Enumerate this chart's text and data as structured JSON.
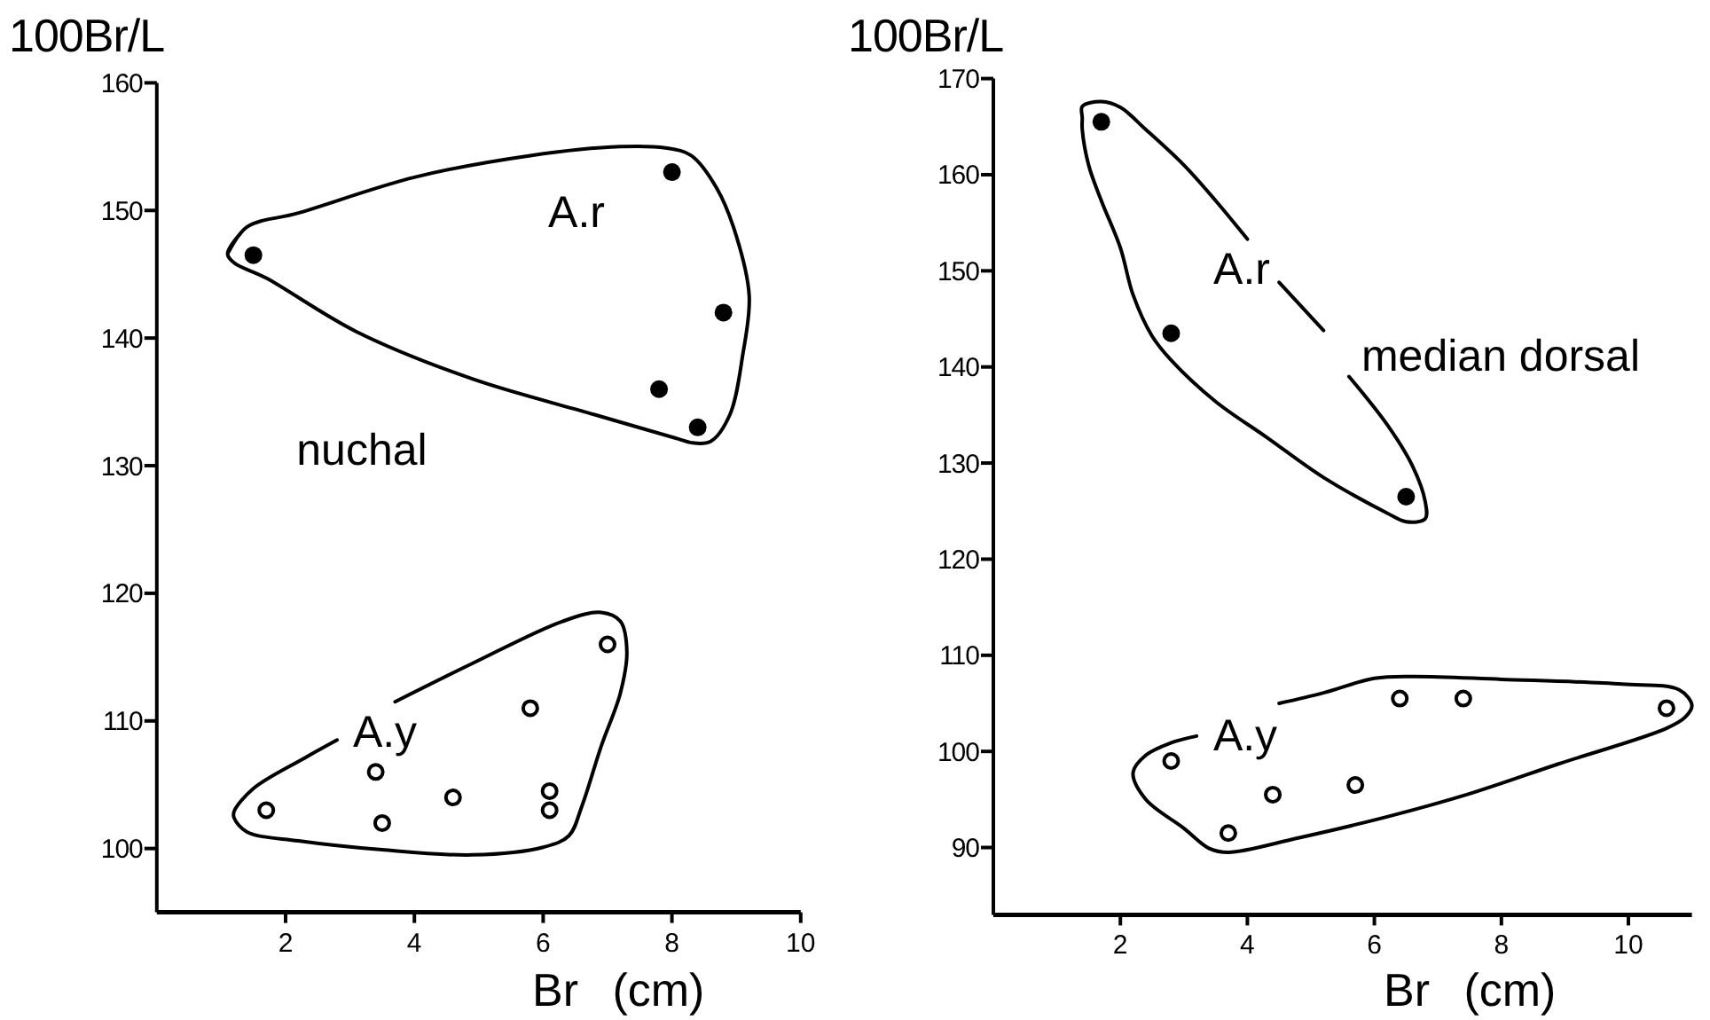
{
  "chart_data": [
    {
      "type": "scatter",
      "title": "nuchal",
      "xlabel": "Br (cm)",
      "ylabel": "100Br/L",
      "xlim": [
        0,
        10
      ],
      "ylim": [
        95,
        160
      ],
      "xticks": [
        2,
        4,
        6,
        8,
        10
      ],
      "yticks": [
        100,
        110,
        120,
        130,
        140,
        150,
        160
      ],
      "series": [
        {
          "name": "A.r",
          "color": "#000000",
          "marker": "circle",
          "x": [
            1.5,
            8.0,
            8.8,
            7.8,
            8.4
          ],
          "values": [
            146.5,
            153,
            142,
            136,
            133
          ]
        },
        {
          "name": "A.y",
          "color": "#000000",
          "marker": "circle",
          "x": [
            1.7,
            3.4,
            3.5,
            4.6,
            5.8,
            6.1,
            6.1,
            7.0
          ],
          "values": [
            103,
            106,
            102,
            104,
            111,
            104.5,
            103,
            116
          ]
        },
        {
          "type": "line",
          "color": "#000000",
          "marker": "none",
          "x": [
            1.1,
            1.4,
            2.2,
            4.0,
            5.8,
            7.2,
            7.9,
            8.3,
            8.7,
            9.0,
            9.2,
            9.1,
            8.9,
            8.6,
            8.3,
            8.1,
            6.8,
            4.9,
            3.1,
            1.7,
            1.2,
            1.1,
            1.3
          ],
          "values": [
            146.6,
            148.7,
            149.8,
            152.6,
            154.3,
            155.0,
            154.9,
            154.3,
            151.7,
            148.0,
            143.3,
            138.7,
            134.0,
            131.9,
            131.8,
            132.1,
            134.0,
            136.8,
            140.5,
            144.7,
            145.9,
            146.6,
            148.2
          ]
        },
        {
          "type": "line",
          "color": "#000000",
          "marker": "none",
          "x": [
            3.7,
            4.9,
            6.3,
            6.9,
            7.2,
            7.3,
            7.2,
            6.9,
            6.6,
            6.4,
            6.0,
            4.9,
            3.5,
            2.2,
            1.4,
            1.2,
            1.2,
            1.5,
            2.3,
            2.8
          ],
          "values": [
            111.5,
            114.5,
            117.8,
            118.5,
            117.8,
            115.4,
            112.2,
            108.0,
            103.3,
            101.0,
            100.1,
            99.5,
            99.9,
            100.6,
            101.3,
            102.4,
            102.9,
            104.7,
            107.1,
            108.5
          ]
        }
      ]
    },
    {
      "type": "scatter",
      "title": "median dorsal",
      "xlabel": "Br (cm)",
      "ylabel": "100Br/L",
      "xlim": [
        0,
        11
      ],
      "ylim": [
        83,
        170
      ],
      "xticks": [
        2,
        4,
        6,
        8,
        10
      ],
      "yticks": [
        90,
        100,
        110,
        120,
        130,
        140,
        150,
        160,
        170
      ],
      "series": [
        {
          "name": "A.r",
          "color": "#000000",
          "marker": "circle",
          "x": [
            1.7,
            2.8,
            6.5
          ],
          "values": [
            165.5,
            143.5,
            126.5
          ]
        },
        {
          "name": "A.y",
          "color": "#000000",
          "marker": "circle",
          "x": [
            2.8,
            3.7,
            4.4,
            5.7,
            6.4,
            7.4,
            10.6
          ],
          "values": [
            99,
            91.5,
            95.5,
            96.5,
            105.5,
            105.5,
            104.5
          ]
        },
        {
          "type": "line",
          "color": "#000000",
          "marker": "none",
          "x": [
            4.5,
            5.2,
            5.4,
            5.6,
            6.2,
            6.6,
            6.8,
            6.8,
            6.5,
            6.2,
            5.2,
            4.3,
            3.5,
            2.8,
            2.5,
            2.2,
            2.0,
            1.7,
            1.5,
            1.4,
            1.4,
            1.4,
            1.7,
            2.0,
            2.4,
            3.0,
            3.5,
            4.0
          ],
          "values": [
            148.8,
            143.8,
            null,
            139.0,
            134.0,
            129.7,
            126.0,
            124.2,
            123.9,
            124.8,
            128.5,
            132.7,
            136.4,
            140.7,
            143.2,
            147.5,
            152.4,
            157.3,
            161.0,
            164.7,
            165.9,
            167.1,
            167.6,
            167.0,
            164.7,
            161.0,
            157.3,
            153.3
          ]
        },
        {
          "type": "line",
          "color": "#000000",
          "marker": "none",
          "x": [
            4.5,
            5.2,
            6.0,
            6.6,
            8.0,
            9.9,
            10.8,
            11.0,
            10.9,
            10.6,
            8.9,
            7.5,
            6.2,
            4.8,
            3.7,
            3.4,
            3.0,
            2.4,
            2.2,
            2.4,
            2.8,
            3.2
          ],
          "values": [
            105.0,
            106.1,
            107.6,
            107.8,
            107.5,
            107.0,
            106.4,
            104.8,
            103.6,
            102.4,
            98.7,
            95.6,
            93.2,
            91.0,
            89.5,
            89.9,
            92.0,
            95.0,
            97.8,
            99.6,
            100.9,
            101.6
          ]
        }
      ]
    }
  ]
}
